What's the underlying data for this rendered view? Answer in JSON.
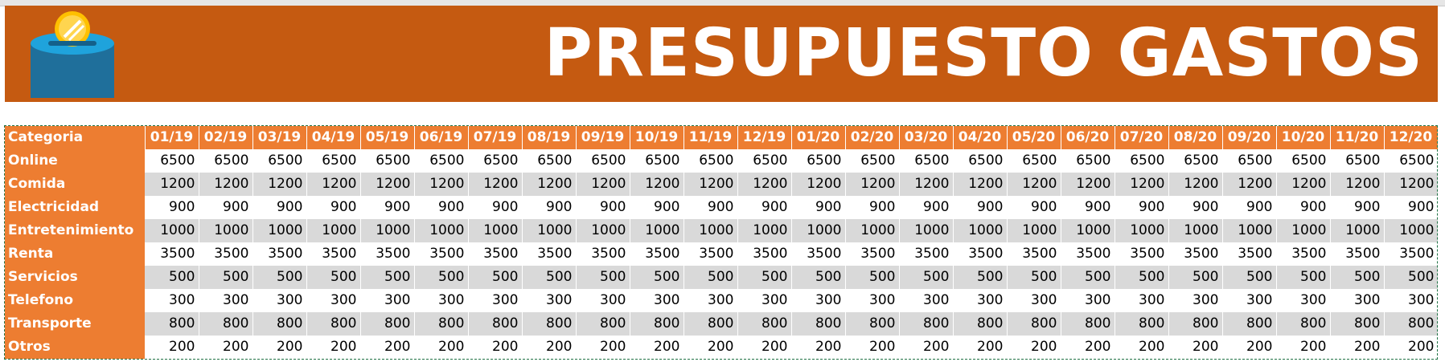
{
  "banner": {
    "title": "PRESUPUESTO GASTOS",
    "background_color": "#c55a11",
    "logo_icon": "piggy-bank-coin-icon"
  },
  "table": {
    "category_header": "Categoria",
    "months": [
      "01/19",
      "02/19",
      "03/19",
      "04/19",
      "05/19",
      "06/19",
      "07/19",
      "08/19",
      "09/19",
      "10/19",
      "11/19",
      "12/19",
      "01/20",
      "02/20",
      "03/20",
      "04/20",
      "05/20",
      "06/20",
      "07/20",
      "08/20",
      "09/20",
      "10/20",
      "11/20",
      "12/20"
    ],
    "rows": [
      {
        "category": "Online",
        "value": "6500"
      },
      {
        "category": "Comida",
        "value": "1200"
      },
      {
        "category": "Electricidad",
        "value": "900"
      },
      {
        "category": "Entretenimiento",
        "value": "1000"
      },
      {
        "category": "Renta",
        "value": "3500"
      },
      {
        "category": "Servicios",
        "value": "500"
      },
      {
        "category": "Telefono",
        "value": "300"
      },
      {
        "category": "Transporte",
        "value": "800"
      },
      {
        "category": "Otros",
        "value": "200"
      }
    ],
    "header_color": "#ed7d31",
    "band_color": "#d9d9d9"
  }
}
